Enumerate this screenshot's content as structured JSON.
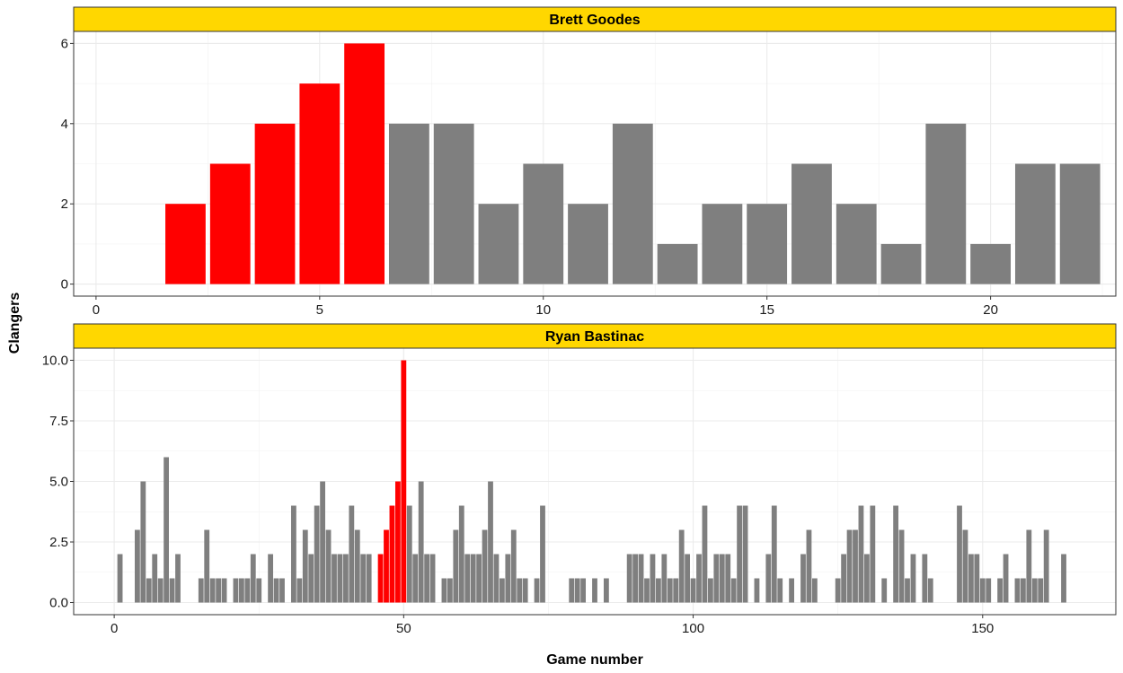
{
  "chart_data": {
    "type": "bar",
    "xlabel": "Game number",
    "ylabel": "Clangers",
    "colors": {
      "highlight": "#ff0000",
      "normal": "#7f7f7f",
      "strip": "#ffd700"
    },
    "panels": [
      {
        "name": "Brett Goodes",
        "xlim": [
          -0.5,
          22.8
        ],
        "ylim": [
          -0.3,
          6.3
        ],
        "xticks": [
          0,
          5,
          10,
          15,
          20
        ],
        "yticks": [
          0,
          2,
          4,
          6
        ],
        "ytick_labels": [
          "0",
          "2",
          "4",
          "6"
        ],
        "highlight_x": [
          2,
          3,
          4,
          5,
          6
        ],
        "x": [
          1,
          2,
          3,
          4,
          5,
          6,
          7,
          8,
          9,
          10,
          11,
          12,
          13,
          14,
          15,
          16,
          17,
          18,
          19,
          20,
          21,
          22
        ],
        "values": [
          0,
          2,
          3,
          4,
          5,
          6,
          4,
          4,
          2,
          3,
          2,
          4,
          1,
          2,
          2,
          3,
          2,
          1,
          4,
          1,
          3,
          3
        ]
      },
      {
        "name": "Ryan Bastinac",
        "xlim": [
          -7,
          173
        ],
        "ylim": [
          -0.5,
          10.5
        ],
        "xticks": [
          0,
          50,
          100,
          150
        ],
        "yticks": [
          0,
          2.5,
          5,
          7.5,
          10
        ],
        "ytick_labels": [
          "0.0",
          "2.5",
          "5.0",
          "7.5",
          "10.0"
        ],
        "highlight_x": [
          46,
          47,
          48,
          49,
          50
        ],
        "x": [
          1,
          2,
          3,
          4,
          5,
          6,
          7,
          8,
          9,
          10,
          11,
          12,
          13,
          14,
          15,
          16,
          17,
          18,
          19,
          20,
          21,
          22,
          23,
          24,
          25,
          26,
          27,
          28,
          29,
          30,
          31,
          32,
          33,
          34,
          35,
          36,
          37,
          38,
          39,
          40,
          41,
          42,
          43,
          44,
          45,
          46,
          47,
          48,
          49,
          50,
          51,
          52,
          53,
          54,
          55,
          56,
          57,
          58,
          59,
          60,
          61,
          62,
          63,
          64,
          65,
          66,
          67,
          68,
          69,
          70,
          71,
          72,
          73,
          74,
          75,
          76,
          77,
          78,
          79,
          80,
          81,
          82,
          83,
          84,
          85,
          86,
          87,
          88,
          89,
          90,
          91,
          92,
          93,
          94,
          95,
          96,
          97,
          98,
          99,
          100,
          101,
          102,
          103,
          104,
          105,
          106,
          107,
          108,
          109,
          110,
          111,
          112,
          113,
          114,
          115,
          116,
          117,
          118,
          119,
          120,
          121,
          122,
          123,
          124,
          125,
          126,
          127,
          128,
          129,
          130,
          131,
          132,
          133,
          134,
          135,
          136,
          137,
          138,
          139,
          140,
          141,
          142,
          143,
          144,
          145,
          146,
          147,
          148,
          149,
          150,
          151,
          152,
          153,
          154,
          155,
          156,
          157,
          158,
          159,
          160,
          161,
          162,
          163,
          164,
          165
        ],
        "values": [
          2,
          0,
          0,
          3,
          5,
          1,
          2,
          1,
          6,
          1,
          2,
          0,
          0,
          0,
          1,
          3,
          1,
          1,
          1,
          0,
          1,
          1,
          1,
          2,
          1,
          0,
          2,
          1,
          1,
          0,
          4,
          1,
          3,
          2,
          4,
          5,
          3,
          2,
          2,
          2,
          4,
          3,
          2,
          2,
          0,
          2,
          3,
          4,
          5,
          10,
          4,
          2,
          5,
          2,
          2,
          0,
          1,
          1,
          3,
          4,
          2,
          2,
          2,
          3,
          5,
          2,
          1,
          2,
          3,
          1,
          1,
          0,
          1,
          4,
          0,
          0,
          0,
          0,
          1,
          1,
          1,
          0,
          1,
          0,
          1,
          0,
          0,
          0,
          2,
          2,
          2,
          1,
          2,
          1,
          2,
          1,
          1,
          3,
          2,
          1,
          2,
          4,
          1,
          2,
          2,
          2,
          1,
          4,
          4,
          0,
          1,
          0,
          2,
          4,
          1,
          0,
          1,
          0,
          2,
          3,
          1,
          0,
          0,
          0,
          1,
          2,
          3,
          3,
          4,
          2,
          4,
          0,
          1,
          0,
          4,
          3,
          1,
          2,
          0,
          2,
          1,
          0,
          0,
          0,
          0,
          4,
          3,
          2,
          2,
          1,
          1,
          0,
          1,
          2,
          0,
          1,
          1,
          3,
          1,
          1,
          3,
          0,
          0,
          2,
          0
        ]
      }
    ]
  }
}
